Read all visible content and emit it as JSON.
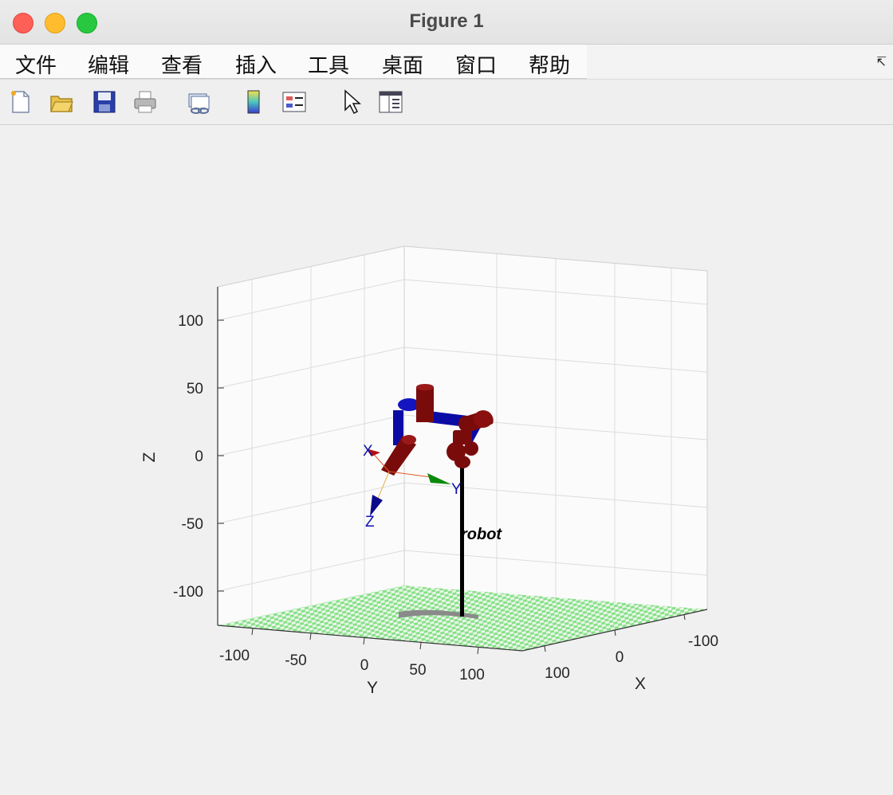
{
  "window": {
    "title": "Figure 1"
  },
  "menu": {
    "items": [
      "文件",
      "编辑",
      "查看",
      "插入",
      "工具",
      "桌面",
      "窗口",
      "帮助"
    ]
  },
  "toolbar": {
    "icons": [
      "new-figure-icon",
      "open-file-icon",
      "save-icon",
      "print-icon",
      "link-plot-icon",
      "colorbar-icon",
      "legend-icon",
      "edit-plot-pointer-icon",
      "property-inspector-icon"
    ]
  },
  "chart_data": {
    "type": "3d-plot",
    "zlabel": "Z",
    "ylabel": "Y",
    "xlabel": "X",
    "z_ticks": [
      "100",
      "50",
      "0",
      "-50",
      "-100"
    ],
    "y_ticks": [
      "-100",
      "-50",
      "0",
      "50",
      "100"
    ],
    "x_ticks": [
      "100",
      "0",
      "-100"
    ],
    "xlim": [
      -130,
      130
    ],
    "ylim": [
      -130,
      130
    ],
    "zlim": [
      -125,
      125
    ],
    "grid": true,
    "robot_label": "robot",
    "frame_labels": {
      "x": "X",
      "y": "Y",
      "z": "Z"
    },
    "colors": {
      "link": "#0b0ba6",
      "joint": "#7a0b0b",
      "floor": "#8ee58e",
      "pole": "#000000",
      "base": "#8a8a8a"
    }
  }
}
